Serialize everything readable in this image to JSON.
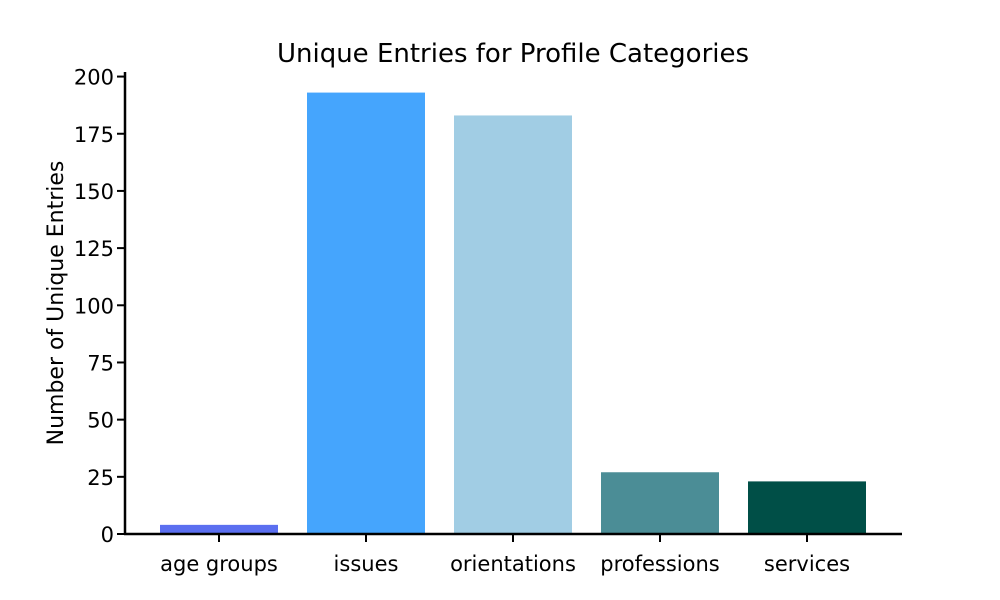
{
  "chart_data": {
    "type": "bar",
    "title": "Unique Entries for Profile Categories",
    "xlabel": "",
    "ylabel": "Number of Unique Entries",
    "categories": [
      "age groups",
      "issues",
      "orientations",
      "professions",
      "services"
    ],
    "values": [
      4,
      193,
      183,
      27,
      23
    ],
    "colors": [
      "#5b6ff0",
      "#45a5fd",
      "#a1cde4",
      "#4b8d96",
      "#004f47"
    ],
    "ylim": [
      0,
      202
    ],
    "yticks": [
      0,
      25,
      50,
      75,
      100,
      125,
      150,
      175,
      200
    ],
    "grid": false,
    "legend": "none"
  }
}
